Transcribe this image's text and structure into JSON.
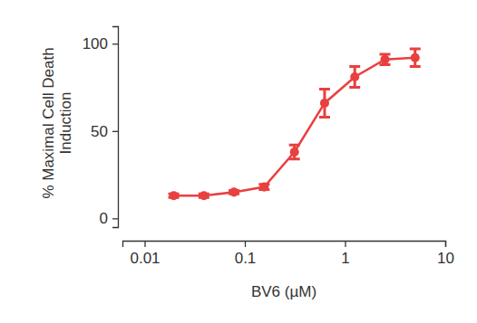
{
  "chart_data": {
    "type": "line",
    "x_label": "BV6 (µM)",
    "y_label": "% Maximal Cell Death Induction",
    "x": [
      0.0195,
      0.039,
      0.078,
      0.156,
      0.3125,
      0.625,
      1.25,
      2.5,
      5
    ],
    "values": [
      13,
      13,
      15,
      18,
      38,
      66,
      81,
      91,
      92
    ],
    "errors": [
      1,
      1,
      1,
      1.5,
      4,
      8,
      6,
      3,
      5
    ],
    "color": "#e8403f",
    "marker": "circle",
    "log": "x",
    "xlim": [
      0.006,
      10
    ],
    "xticks": [
      0.01,
      0.1,
      1,
      10
    ],
    "ylim": [
      -5,
      110
    ],
    "yticks": [
      0,
      50,
      100
    ],
    "grid": false
  }
}
